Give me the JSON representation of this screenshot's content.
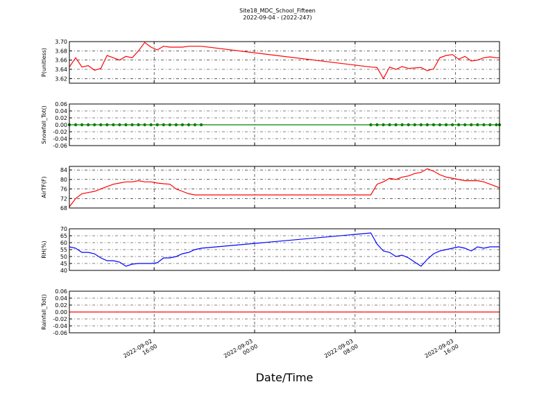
{
  "chart_data": {
    "type": "line",
    "title": "Site18_MDC_School_Fifteen",
    "subtitle": "2022-09-04 - (2022-247)",
    "xlabel": "Date/Time",
    "xlim": [
      "2022-09-02 09:15",
      "2022-09-03 19:30"
    ],
    "xticks": [
      "2022-09-02 16:00",
      "2022-09-03 00:00",
      "2022-09-03 08:00",
      "2022-09-03 16:00"
    ],
    "grid": true,
    "x": [
      "2022-09-02 09:15",
      "2022-09-02 09:45",
      "2022-09-02 10:15",
      "2022-09-02 10:45",
      "2022-09-02 11:15",
      "2022-09-02 11:45",
      "2022-09-02 12:15",
      "2022-09-02 12:45",
      "2022-09-02 13:15",
      "2022-09-02 13:45",
      "2022-09-02 14:15",
      "2022-09-02 14:45",
      "2022-09-02 15:15",
      "2022-09-02 15:45",
      "2022-09-02 16:15",
      "2022-09-02 16:45",
      "2022-09-02 17:15",
      "2022-09-02 17:45",
      "2022-09-02 18:15",
      "2022-09-02 18:45",
      "2022-09-02 19:15",
      "2022-09-02 19:45",
      "2022-09-03 09:15",
      "2022-09-03 09:45",
      "2022-09-03 10:15",
      "2022-09-03 10:45",
      "2022-09-03 11:15",
      "2022-09-03 11:45",
      "2022-09-03 12:15",
      "2022-09-03 12:45",
      "2022-09-03 13:15",
      "2022-09-03 13:45",
      "2022-09-03 14:15",
      "2022-09-03 14:45",
      "2022-09-03 15:15",
      "2022-09-03 15:45",
      "2022-09-03 16:15",
      "2022-09-03 16:45",
      "2022-09-03 17:15",
      "2022-09-03 17:45",
      "2022-09-03 18:15",
      "2022-09-03 18:45",
      "2022-09-03 19:15",
      "2022-09-03 19:30"
    ],
    "panels": [
      {
        "ylabel": "P(unitless)",
        "ylim": [
          3.61,
          3.7
        ],
        "yticks": [
          3.62,
          3.64,
          3.66,
          3.68,
          {
            "value": 3.7,
            "label": "3.70"
          }
        ],
        "series": [
          {
            "color": "#ff0000",
            "markers": false,
            "values": [
              3.645,
              3.665,
              3.645,
              3.648,
              3.638,
              3.642,
              3.67,
              3.665,
              3.66,
              3.668,
              3.665,
              3.68,
              3.698,
              3.688,
              3.682,
              3.69,
              3.688,
              3.688,
              3.688,
              3.69,
              3.69,
              3.69,
              3.645,
              3.644,
              3.62,
              3.645,
              3.64,
              3.646,
              3.642,
              3.643,
              3.644,
              3.637,
              3.641,
              3.665,
              3.67,
              3.672,
              3.662,
              3.668,
              3.658,
              3.66,
              3.665,
              3.667,
              3.665,
              3.665
            ]
          }
        ]
      },
      {
        "ylabel": "Snowfall_Tot()",
        "ylim": [
          -0.06,
          0.06
        ],
        "yticks": [
          -0.06,
          -0.04,
          -0.02,
          {
            "value": 0,
            "label": "0.00"
          },
          0.02,
          0.04,
          0.06
        ],
        "series": [
          {
            "color": "#008000",
            "markers": true,
            "values": [
              0,
              0,
              0,
              0,
              0,
              0,
              0,
              0,
              0,
              0,
              0,
              0,
              0,
              0,
              0,
              0,
              0,
              0,
              0,
              0,
              0,
              0,
              0,
              0,
              0,
              0,
              0,
              0,
              0,
              0,
              0,
              0,
              0,
              0,
              0,
              0,
              0,
              0,
              0,
              0,
              0,
              0,
              0,
              0
            ]
          }
        ]
      },
      {
        "ylabel": "AirTF(F)",
        "ylim": [
          68,
          85.5
        ],
        "yticks": [
          68,
          72,
          76,
          80,
          84
        ],
        "series": [
          {
            "color": "#ff0000",
            "markers": false,
            "values": [
              68.5,
              72,
              74,
              74.5,
              75,
              76,
              77,
              78,
              78.5,
              79,
              79,
              79.5,
              79,
              79,
              78.5,
              78.2,
              78,
              76,
              75,
              74,
              73.5,
              73.5,
              73.5,
              78,
              79,
              80.5,
              80,
              81,
              81.5,
              82.5,
              83,
              84.5,
              83.5,
              82,
              81,
              80.5,
              80,
              79.5,
              79.5,
              79.5,
              79,
              78,
              77,
              76.5
            ]
          }
        ]
      },
      {
        "ylabel": "RH(%)",
        "ylim": [
          40,
          70
        ],
        "yticks": [
          40,
          45,
          50,
          55,
          60,
          65,
          70
        ],
        "series": [
          {
            "color": "#0000ff",
            "markers": false,
            "values": [
              57,
              56,
              53,
              53,
              52,
              49,
              47,
              47,
              46,
              43,
              44.5,
              45,
              45,
              45,
              45.5,
              49,
              49,
              50,
              52,
              53,
              55,
              56,
              67,
              59,
              54,
              53,
              50,
              51,
              49,
              46,
              43,
              48,
              52,
              54,
              55,
              56,
              57,
              56,
              54,
              57,
              56,
              57,
              57,
              57
            ]
          }
        ]
      },
      {
        "ylabel": "Rainfall_Tot()",
        "ylim": [
          -0.06,
          0.06
        ],
        "yticks": [
          -0.06,
          -0.04,
          -0.02,
          {
            "value": 0,
            "label": "0.00"
          },
          0.02,
          0.04,
          0.06
        ],
        "series": [
          {
            "color": "#ff0000",
            "markers": false,
            "values": [
              0,
              0,
              0,
              0,
              0,
              0,
              0,
              0,
              0,
              0,
              0,
              0,
              0,
              0,
              0,
              0,
              0,
              0,
              0,
              0,
              0,
              0,
              0,
              0,
              0,
              0,
              0,
              0,
              0,
              0,
              0,
              0,
              0,
              0,
              0,
              0,
              0,
              0,
              0,
              0,
              0,
              0,
              0,
              0
            ]
          }
        ]
      }
    ]
  }
}
